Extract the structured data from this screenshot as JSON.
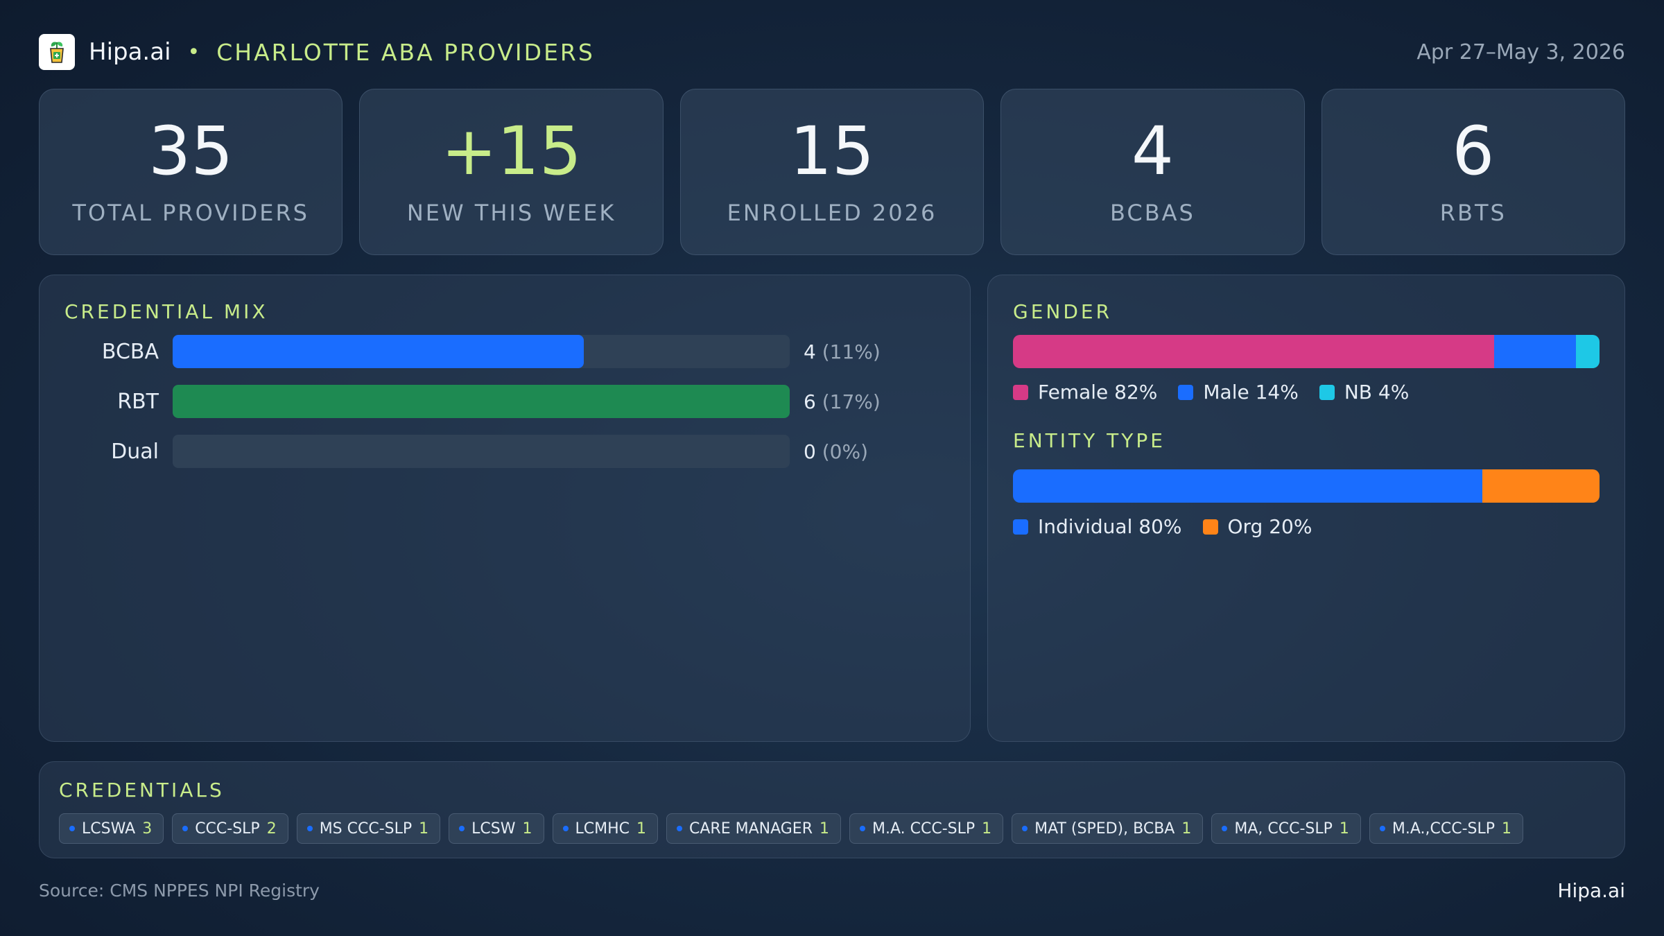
{
  "header": {
    "brand": "Hipa.ai",
    "separator": "•",
    "title": "CHARLOTTE ABA PROVIDERS",
    "date_range": "Apr 27–May 3, 2026",
    "logo_icon": "cup-plant-icon"
  },
  "kpis": [
    {
      "value": "35",
      "label": "TOTAL PROVIDERS",
      "accent": false
    },
    {
      "value": "+15",
      "label": "NEW THIS WEEK",
      "accent": true
    },
    {
      "value": "15",
      "label": "ENROLLED 2026",
      "accent": false
    },
    {
      "value": "4",
      "label": "BCBAS",
      "accent": false
    },
    {
      "value": "6",
      "label": "RBTS",
      "accent": false
    }
  ],
  "colors": {
    "accent": "#c8ec8a",
    "bcba": "#1a6dff",
    "rbt": "#1e8a52",
    "female": "#d63a86",
    "male": "#1a6dff",
    "nb": "#1ec8e6",
    "individual": "#1a6dff",
    "org": "#ff8418"
  },
  "chart_data": [
    {
      "type": "bar",
      "orientation": "horizontal",
      "title": "CREDENTIAL MIX",
      "categories": [
        "BCBA",
        "RBT",
        "Dual"
      ],
      "values": [
        4,
        6,
        0
      ],
      "value_labels": [
        "4",
        "6",
        "0"
      ],
      "percent_labels": [
        "(11%)",
        "(17%)",
        "(0%)"
      ],
      "xlim": [
        0,
        6
      ],
      "colors": [
        "#1a6dff",
        "#1e8a52",
        "#2f4156"
      ]
    },
    {
      "type": "bar",
      "orientation": "stacked-horizontal",
      "title": "GENDER",
      "series": [
        {
          "name": "Female",
          "value": 82,
          "label": "Female 82%",
          "color": "#d63a86"
        },
        {
          "name": "Male",
          "value": 14,
          "label": "Male 14%",
          "color": "#1a6dff"
        },
        {
          "name": "NB",
          "value": 4,
          "label": "NB 4%",
          "color": "#1ec8e6"
        }
      ]
    },
    {
      "type": "bar",
      "orientation": "stacked-horizontal",
      "title": "ENTITY TYPE",
      "series": [
        {
          "name": "Individual",
          "value": 80,
          "label": "Individual 80%",
          "color": "#1a6dff"
        },
        {
          "name": "Org",
          "value": 20,
          "label": "Org 20%",
          "color": "#ff8418"
        }
      ]
    }
  ],
  "credentials": {
    "title": "CREDENTIALS",
    "items": [
      {
        "name": "LCSWA",
        "count": "3"
      },
      {
        "name": "CCC-SLP",
        "count": "2"
      },
      {
        "name": "MS CCC-SLP",
        "count": "1"
      },
      {
        "name": "LCSW",
        "count": "1"
      },
      {
        "name": "LCMHC",
        "count": "1"
      },
      {
        "name": "CARE MANAGER",
        "count": "1"
      },
      {
        "name": "M.A. CCC-SLP",
        "count": "1"
      },
      {
        "name": "MAT (SPED), BCBA",
        "count": "1"
      },
      {
        "name": "MA, CCC-SLP",
        "count": "1"
      },
      {
        "name": "M.A.,CCC-SLP",
        "count": "1"
      }
    ]
  },
  "footer": {
    "source": "Source: CMS NPPES NPI Registry",
    "brand": "Hipa.ai"
  }
}
